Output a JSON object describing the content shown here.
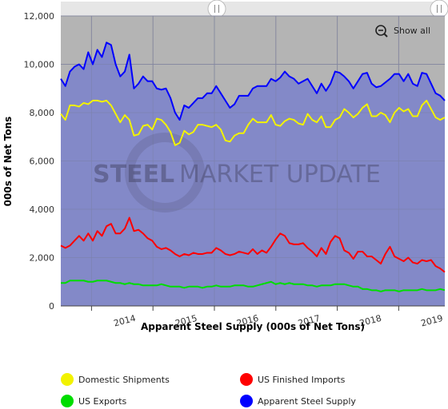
{
  "chart_data": {
    "type": "area",
    "title": "",
    "xlabel": "Apparent Steel Supply (000s of Net Tons)",
    "ylabel": "000s of Net Tons",
    "ylim": [
      0,
      12000
    ],
    "y_ticks": [
      0,
      2000,
      4000,
      6000,
      8000,
      10000,
      12000
    ],
    "y_tick_labels": [
      "0",
      "2,000",
      "4,000",
      "6,000",
      "8,000",
      "10,000",
      "12,000"
    ],
    "x_ticks": [
      "2014",
      "2015",
      "2016",
      "2017",
      "2018",
      "2019"
    ],
    "x_start": "2013-07",
    "x_end": "2019-10",
    "x_step": "month",
    "grid": true,
    "legend_position": "bottom",
    "watermark": {
      "bold": "STEEL",
      "light": "MARKET UPDATE"
    },
    "series": [
      {
        "name": "Domestic Shipments",
        "color": "#f2f200",
        "values": [
          7950,
          7700,
          8300,
          8300,
          8250,
          8400,
          8350,
          8500,
          8500,
          8450,
          8500,
          8300,
          7950,
          7600,
          7900,
          7700,
          7050,
          7100,
          7450,
          7500,
          7300,
          7750,
          7700,
          7500,
          7200,
          6650,
          6750,
          7250,
          7100,
          7200,
          7500,
          7500,
          7450,
          7400,
          7500,
          7300,
          6850,
          6800,
          7050,
          7150,
          7150,
          7500,
          7750,
          7600,
          7600,
          7600,
          7900,
          7500,
          7450,
          7650,
          7750,
          7700,
          7550,
          7500,
          7950,
          7700,
          7600,
          7850,
          7400,
          7400,
          7700,
          7800,
          8150,
          8000,
          7800,
          7950,
          8200,
          8350,
          7850,
          7850,
          8000,
          7900,
          7600,
          8000,
          8200,
          8050,
          8150,
          7850,
          7850,
          8300,
          8500,
          8150,
          7800,
          7700,
          7800
        ]
      },
      {
        "name": "US Finished Imports",
        "color": "#ff0000",
        "values": [
          2500,
          2400,
          2500,
          2700,
          2900,
          2700,
          3000,
          2700,
          3100,
          2900,
          3300,
          3400,
          3000,
          3000,
          3200,
          3650,
          3100,
          3150,
          3000,
          2800,
          2700,
          2450,
          2350,
          2400,
          2300,
          2150,
          2050,
          2150,
          2100,
          2200,
          2150,
          2150,
          2200,
          2200,
          2400,
          2300,
          2150,
          2100,
          2150,
          2250,
          2200,
          2150,
          2350,
          2150,
          2300,
          2200,
          2450,
          2750,
          3000,
          2900,
          2600,
          2550,
          2550,
          2600,
          2400,
          2250,
          2050,
          2400,
          2150,
          2650,
          2900,
          2800,
          2300,
          2200,
          1950,
          2250,
          2250,
          2050,
          2050,
          1900,
          1750,
          2150,
          2450,
          2050,
          1950,
          1850,
          2000,
          1800,
          1750,
          1900,
          1850,
          1900,
          1650,
          1550,
          1400
        ]
      },
      {
        "name": "US Exports",
        "color": "#00dd00",
        "values": [
          950,
          950,
          1050,
          1050,
          1050,
          1050,
          1000,
          1000,
          1050,
          1050,
          1050,
          1000,
          950,
          950,
          900,
          950,
          900,
          900,
          850,
          850,
          850,
          850,
          900,
          850,
          800,
          800,
          800,
          750,
          800,
          800,
          800,
          750,
          800,
          800,
          850,
          800,
          800,
          800,
          850,
          850,
          850,
          800,
          800,
          850,
          900,
          950,
          1000,
          900,
          950,
          900,
          950,
          900,
          900,
          900,
          850,
          850,
          800,
          850,
          850,
          850,
          900,
          900,
          900,
          850,
          800,
          800,
          700,
          700,
          650,
          650,
          600,
          650,
          650,
          650,
          600,
          650,
          650,
          650,
          650,
          700,
          650,
          650,
          650,
          700,
          650
        ]
      },
      {
        "name": "Apparent Steel Supply",
        "color": "#0000ff",
        "values": [
          9400,
          9100,
          9700,
          9900,
          10000,
          9800,
          10500,
          10000,
          10600,
          10300,
          10900,
          10800,
          10000,
          9500,
          9700,
          10400,
          9000,
          9200,
          9500,
          9300,
          9300,
          9000,
          8950,
          9000,
          8600,
          8000,
          7700,
          8300,
          8200,
          8400,
          8600,
          8600,
          8800,
          8800,
          9100,
          8800,
          8500,
          8200,
          8350,
          8700,
          8700,
          8700,
          9000,
          9100,
          9100,
          9100,
          9400,
          9300,
          9450,
          9700,
          9500,
          9400,
          9200,
          9300,
          9400,
          9100,
          8800,
          9200,
          8900,
          9200,
          9700,
          9650,
          9500,
          9300,
          9000,
          9300,
          9600,
          9650,
          9200,
          9050,
          9100,
          9250,
          9400,
          9600,
          9600,
          9300,
          9600,
          9200,
          9100,
          9650,
          9600,
          9200,
          8800,
          8700,
          8500
        ]
      }
    ]
  },
  "legend": [
    {
      "label": "Domestic Shipments",
      "color": "#f2f200"
    },
    {
      "label": "US Finished Imports",
      "color": "#ff0000"
    },
    {
      "label": "US Exports",
      "color": "#00dd00"
    },
    {
      "label": "Apparent Steel Supply",
      "color": "#0000ff"
    }
  ],
  "zoom": {
    "show_all_label": "Show all"
  },
  "colors": {
    "fill_supply": "#8389c8",
    "plot_background": "#b4b4b4",
    "grid": "#7b80a8"
  }
}
